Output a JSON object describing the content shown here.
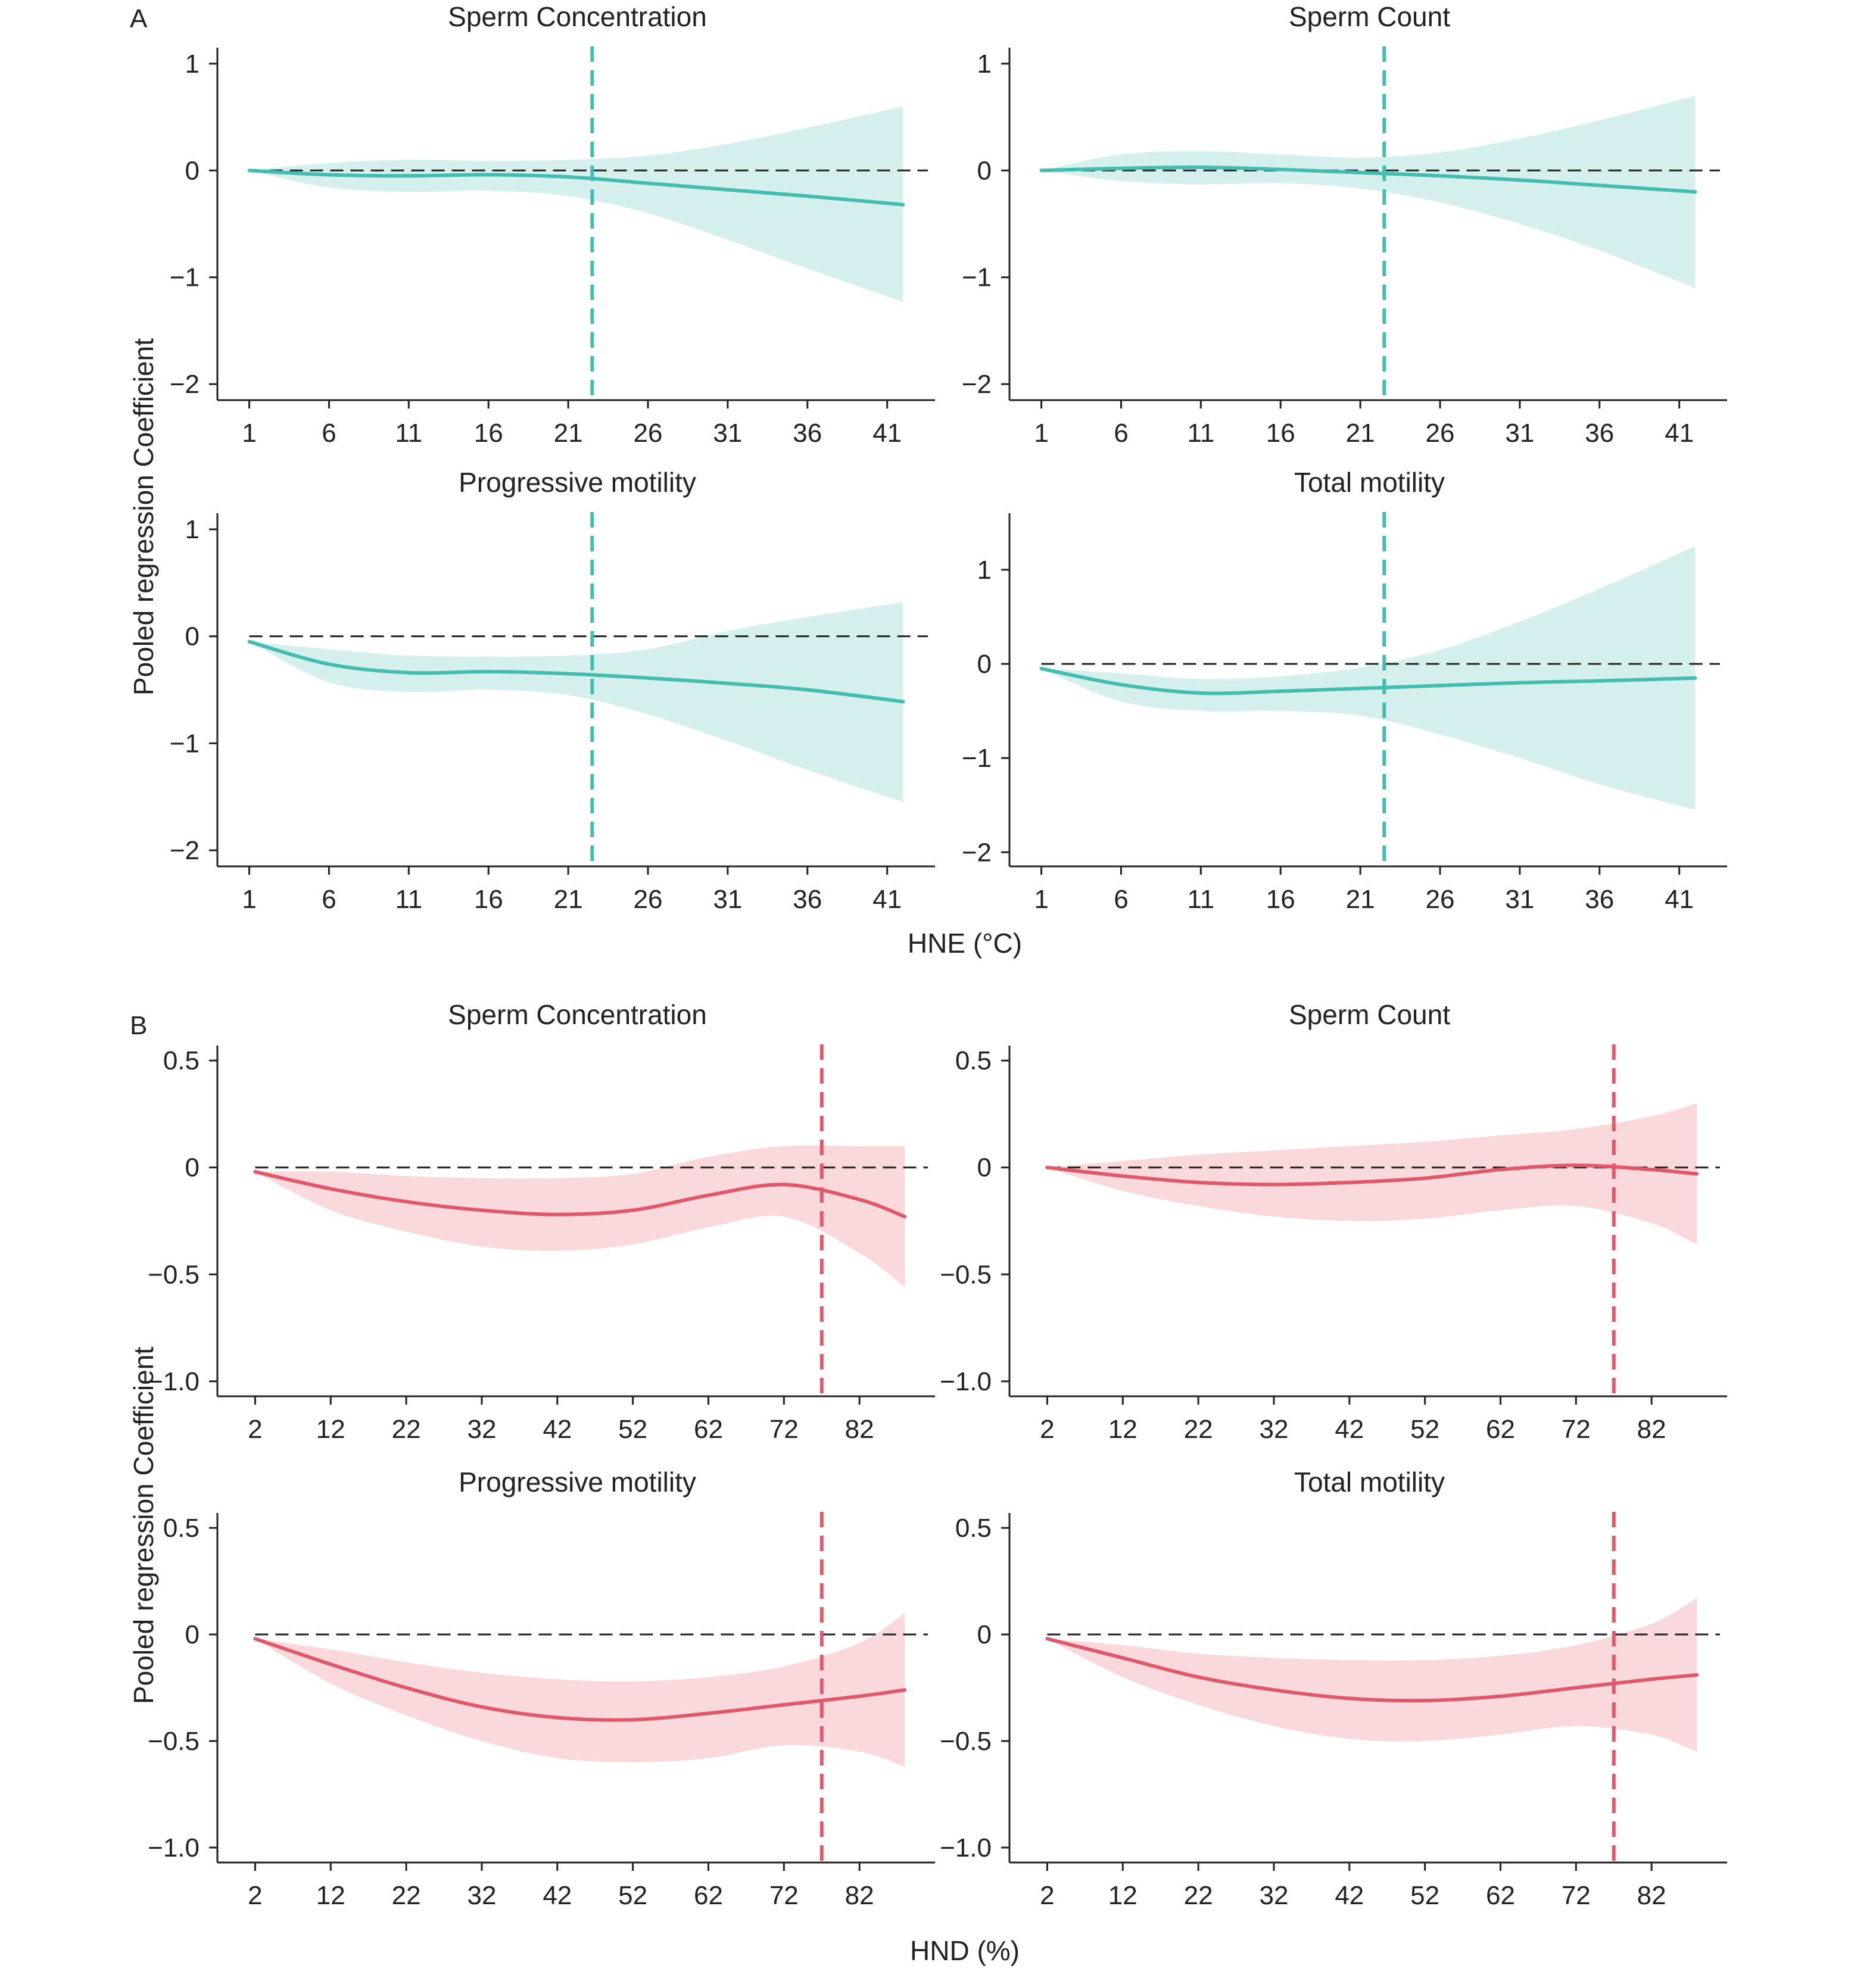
{
  "figure": {
    "colors": {
      "panel_A": "#43bdb0",
      "panel_A_band": "#d6f1ed",
      "panel_B": "#e0586a",
      "panel_B_band": "#fad9dd",
      "axis": "#222222",
      "reference": "#222222"
    },
    "groups": [
      {
        "letter": "A",
        "ylabel": "Pooled regression Coefficient",
        "xlabel": "HNE (°C)",
        "color_key": "panel_A",
        "band_key": "panel_A_band"
      },
      {
        "letter": "B",
        "ylabel": "Pooled regression Coefficient",
        "xlabel": "HND (%)",
        "color_key": "panel_B",
        "band_key": "panel_B_band"
      }
    ]
  },
  "chart_data": [
    {
      "type": "line",
      "group": 0,
      "title": "Sperm Concentration",
      "xlabel": "",
      "ylabel": "",
      "xlim": [
        -1,
        44
      ],
      "ylim": [
        -2.15,
        1.15
      ],
      "xticks": [
        1,
        6,
        11,
        16,
        21,
        26,
        31,
        36,
        41
      ],
      "yticks": [
        1,
        0,
        -1,
        -2
      ],
      "ytick_labels": [
        "1",
        "0",
        "−1",
        "−2"
      ],
      "threshold": 22.5,
      "reference_y": 0,
      "x": [
        1,
        6,
        11,
        16,
        21,
        26,
        31,
        36,
        42
      ],
      "y": [
        0,
        -0.04,
        -0.05,
        -0.04,
        -0.06,
        -0.12,
        -0.18,
        -0.24,
        -0.32
      ],
      "lower": [
        0,
        -0.16,
        -0.2,
        -0.19,
        -0.24,
        -0.4,
        -0.65,
        -0.92,
        -1.23
      ],
      "upper": [
        0,
        0.07,
        0.1,
        0.09,
        0.1,
        0.14,
        0.25,
        0.4,
        0.6
      ]
    },
    {
      "type": "line",
      "group": 0,
      "title": "Sperm Count",
      "xlabel": "",
      "ylabel": "",
      "xlim": [
        -1,
        44
      ],
      "ylim": [
        -2.15,
        1.15
      ],
      "xticks": [
        1,
        6,
        11,
        16,
        21,
        26,
        31,
        36,
        41
      ],
      "yticks": [
        1,
        0,
        -1,
        -2
      ],
      "ytick_labels": [
        "1",
        "0",
        "−1",
        "−2"
      ],
      "threshold": 22.5,
      "reference_y": 0,
      "x": [
        1,
        6,
        11,
        16,
        21,
        26,
        31,
        36,
        42
      ],
      "y": [
        0,
        0.02,
        0.03,
        0.01,
        -0.02,
        -0.05,
        -0.09,
        -0.14,
        -0.2
      ],
      "lower": [
        0,
        -0.1,
        -0.13,
        -0.12,
        -0.17,
        -0.3,
        -0.5,
        -0.75,
        -1.1
      ],
      "upper": [
        0,
        0.15,
        0.18,
        0.15,
        0.12,
        0.17,
        0.3,
        0.47,
        0.7
      ]
    },
    {
      "type": "line",
      "group": 0,
      "title": "Progressive motility",
      "xlabel": "",
      "ylabel": "",
      "xlim": [
        -1,
        44
      ],
      "ylim": [
        -2.15,
        1.15
      ],
      "xticks": [
        1,
        6,
        11,
        16,
        21,
        26,
        31,
        36,
        41
      ],
      "yticks": [
        1,
        0,
        -1,
        -2
      ],
      "ytick_labels": [
        "1",
        "0",
        "−1",
        "−2"
      ],
      "threshold": 22.5,
      "reference_y": 0,
      "x": [
        1,
        6,
        11,
        16,
        21,
        26,
        31,
        36,
        42
      ],
      "y": [
        -0.05,
        -0.26,
        -0.34,
        -0.33,
        -0.35,
        -0.39,
        -0.44,
        -0.5,
        -0.61
      ],
      "lower": [
        -0.05,
        -0.43,
        -0.52,
        -0.5,
        -0.55,
        -0.73,
        -0.98,
        -1.25,
        -1.55
      ],
      "upper": [
        -0.05,
        -0.12,
        -0.18,
        -0.19,
        -0.18,
        -0.12,
        0.05,
        0.18,
        0.32
      ]
    },
    {
      "type": "line",
      "group": 0,
      "title": "Total motility",
      "xlabel": "",
      "ylabel": "",
      "xlim": [
        -1,
        44
      ],
      "ylim": [
        -2.15,
        1.6
      ],
      "xticks": [
        1,
        6,
        11,
        16,
        21,
        26,
        31,
        36,
        41
      ],
      "yticks": [
        1,
        0,
        -1,
        -2
      ],
      "ytick_labels": [
        "1",
        "0",
        "−1",
        "−2"
      ],
      "threshold": 22.5,
      "reference_y": 0,
      "x": [
        1,
        6,
        11,
        16,
        21,
        26,
        31,
        36,
        42
      ],
      "y": [
        -0.05,
        -0.22,
        -0.31,
        -0.29,
        -0.26,
        -0.23,
        -0.2,
        -0.18,
        -0.15
      ],
      "lower": [
        -0.05,
        -0.4,
        -0.5,
        -0.5,
        -0.55,
        -0.75,
        -1.0,
        -1.28,
        -1.55
      ],
      "upper": [
        -0.05,
        -0.1,
        -0.16,
        -0.13,
        -0.04,
        0.15,
        0.45,
        0.8,
        1.25
      ]
    },
    {
      "type": "line",
      "group": 1,
      "title": "Sperm Concentration",
      "xlabel": "",
      "ylabel": "",
      "xlim": [
        -3,
        92
      ],
      "ylim": [
        -1.07,
        0.57
      ],
      "xticks": [
        2,
        12,
        22,
        32,
        42,
        52,
        62,
        72,
        82
      ],
      "yticks": [
        0.5,
        0,
        -0.5,
        -1.0
      ],
      "ytick_labels": [
        "0.5",
        "0",
        "−0.5",
        "−1.0"
      ],
      "threshold": 77,
      "reference_y": 0,
      "x": [
        2,
        12,
        22,
        32,
        42,
        52,
        62,
        72,
        82,
        88
      ],
      "y": [
        -0.02,
        -0.1,
        -0.16,
        -0.2,
        -0.22,
        -0.2,
        -0.13,
        -0.08,
        -0.15,
        -0.23
      ],
      "lower": [
        -0.02,
        -0.2,
        -0.3,
        -0.37,
        -0.39,
        -0.36,
        -0.28,
        -0.23,
        -0.4,
        -0.56
      ],
      "upper": [
        -0.02,
        -0.02,
        -0.04,
        -0.05,
        -0.05,
        -0.03,
        0.05,
        0.1,
        0.1,
        0.1
      ]
    },
    {
      "type": "line",
      "group": 1,
      "title": "Sperm Count",
      "xlabel": "",
      "ylabel": "",
      "xlim": [
        -3,
        92
      ],
      "ylim": [
        -1.07,
        0.57
      ],
      "xticks": [
        2,
        12,
        22,
        32,
        42,
        52,
        62,
        72,
        82
      ],
      "yticks": [
        0.5,
        0,
        -0.5,
        -1.0
      ],
      "ytick_labels": [
        "0.5",
        "0",
        "−0.5",
        "−1.0"
      ],
      "threshold": 77,
      "reference_y": 0,
      "x": [
        2,
        12,
        22,
        32,
        42,
        52,
        62,
        72,
        82,
        88
      ],
      "y": [
        0,
        -0.04,
        -0.07,
        -0.08,
        -0.07,
        -0.05,
        -0.01,
        0.01,
        -0.01,
        -0.03
      ],
      "lower": [
        0,
        -0.11,
        -0.18,
        -0.23,
        -0.25,
        -0.24,
        -0.2,
        -0.18,
        -0.26,
        -0.36
      ],
      "upper": [
        0,
        0.03,
        0.06,
        0.08,
        0.1,
        0.12,
        0.15,
        0.18,
        0.24,
        0.3
      ]
    },
    {
      "type": "line",
      "group": 1,
      "title": "Progressive motility",
      "xlabel": "",
      "ylabel": "",
      "xlim": [
        -3,
        92
      ],
      "ylim": [
        -1.07,
        0.57
      ],
      "xticks": [
        2,
        12,
        22,
        32,
        42,
        52,
        62,
        72,
        82
      ],
      "yticks": [
        0.5,
        0,
        -0.5,
        -1.0
      ],
      "ytick_labels": [
        "0.5",
        "0",
        "−0.5",
        "−1.0"
      ],
      "threshold": 77,
      "reference_y": 0,
      "x": [
        2,
        12,
        22,
        32,
        42,
        52,
        62,
        72,
        82,
        88
      ],
      "y": [
        -0.02,
        -0.14,
        -0.25,
        -0.34,
        -0.39,
        -0.4,
        -0.37,
        -0.33,
        -0.29,
        -0.26
      ],
      "lower": [
        -0.02,
        -0.23,
        -0.38,
        -0.5,
        -0.58,
        -0.6,
        -0.58,
        -0.52,
        -0.55,
        -0.62
      ],
      "upper": [
        -0.02,
        -0.07,
        -0.13,
        -0.18,
        -0.21,
        -0.22,
        -0.2,
        -0.15,
        -0.04,
        0.1
      ]
    },
    {
      "type": "line",
      "group": 1,
      "title": "Total motility",
      "xlabel": "",
      "ylabel": "",
      "xlim": [
        -3,
        92
      ],
      "ylim": [
        -1.07,
        0.57
      ],
      "xticks": [
        2,
        12,
        22,
        32,
        42,
        52,
        62,
        72,
        82
      ],
      "yticks": [
        0.5,
        0,
        -0.5,
        -1.0
      ],
      "ytick_labels": [
        "0.5",
        "0",
        "−0.5",
        "−1.0"
      ],
      "threshold": 77,
      "reference_y": 0,
      "x": [
        2,
        12,
        22,
        32,
        42,
        52,
        62,
        72,
        82,
        88
      ],
      "y": [
        -0.02,
        -0.11,
        -0.2,
        -0.26,
        -0.3,
        -0.31,
        -0.29,
        -0.25,
        -0.21,
        -0.19
      ],
      "lower": [
        -0.02,
        -0.2,
        -0.33,
        -0.43,
        -0.49,
        -0.5,
        -0.47,
        -0.43,
        -0.47,
        -0.55
      ],
      "upper": [
        -0.02,
        -0.05,
        -0.09,
        -0.11,
        -0.12,
        -0.12,
        -0.1,
        -0.05,
        0.05,
        0.17
      ]
    }
  ]
}
